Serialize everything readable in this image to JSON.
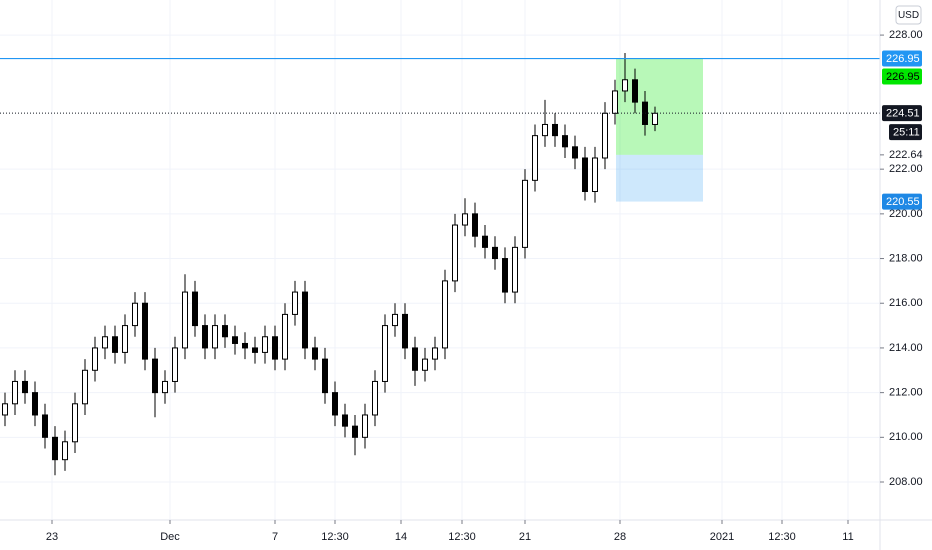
{
  "chart_data": {
    "type": "candlestick",
    "currency": "USD",
    "ylim": [
      206.3,
      229.57
    ],
    "yticks": [
      {
        "value": 228,
        "label": "228.00"
      },
      {
        "value": 222,
        "label": "222.00"
      },
      {
        "value": 220,
        "label": "220.00"
      },
      {
        "value": 218,
        "label": "218.00"
      },
      {
        "value": 216,
        "label": "216.00"
      },
      {
        "value": 214,
        "label": "214.00"
      },
      {
        "value": 212,
        "label": "212.00"
      },
      {
        "value": 210,
        "label": "210.00"
      },
      {
        "value": 208,
        "label": "208.00"
      }
    ],
    "xlim": [
      -0.5,
      87.5
    ],
    "xticks": [
      {
        "value": 4.7,
        "label": "23"
      },
      {
        "value": 16.5,
        "label": "Dec"
      },
      {
        "value": 27,
        "label": "7"
      },
      {
        "value": 33,
        "label": "12:30"
      },
      {
        "value": 39.6,
        "label": "14"
      },
      {
        "value": 45.7,
        "label": "12:30"
      },
      {
        "value": 52,
        "label": "21"
      },
      {
        "value": 61.5,
        "label": "28"
      },
      {
        "value": 71.7,
        "label": "2021"
      },
      {
        "value": 77.7,
        "label": "12:30"
      },
      {
        "value": 84.3,
        "label": "11"
      }
    ],
    "grid": true,
    "up_color": "#ffffff",
    "down_color": "#000000",
    "open": [
      211.0,
      211.5,
      212.5,
      212.0,
      211.0,
      210.0,
      209.0,
      209.8,
      211.5,
      213.0,
      214.0,
      214.5,
      213.8,
      215.0,
      216.0,
      213.5,
      212.0,
      212.5,
      214.0,
      216.5,
      215.0,
      214.0,
      215.0,
      214.5,
      214.2,
      214.0,
      213.8,
      214.5,
      213.5,
      215.5,
      216.5,
      214.0,
      213.5,
      212.0,
      211.0,
      210.5,
      210.0,
      211.0,
      212.5,
      215.0,
      215.5,
      214.0,
      213.0,
      213.5,
      214.0,
      217.0,
      219.5,
      220.0,
      219.0,
      218.5,
      218.0,
      216.5,
      218.5,
      221.5,
      223.5,
      224.0,
      223.5,
      223.0,
      222.5,
      221.0,
      222.5,
      224.5,
      225.5,
      226.0,
      225.0,
      224.0
    ],
    "high": [
      212.0,
      213.0,
      213.0,
      212.5,
      211.5,
      210.5,
      210.3,
      212.0,
      213.5,
      214.5,
      215.0,
      215.0,
      215.5,
      216.5,
      216.5,
      214.0,
      213.0,
      214.5,
      217.3,
      217.0,
      215.5,
      215.5,
      215.5,
      215.0,
      214.7,
      214.5,
      215.0,
      215.0,
      216.0,
      217.0,
      217.0,
      214.5,
      214.0,
      212.5,
      211.5,
      211.0,
      211.5,
      213.0,
      215.5,
      216.0,
      216.0,
      214.5,
      214.0,
      214.5,
      217.5,
      220.0,
      220.7,
      220.5,
      219.5,
      219.0,
      218.5,
      219.0,
      222.0,
      224.0,
      225.1,
      224.5,
      224.0,
      223.5,
      223.0,
      223.0,
      225.0,
      226.0,
      227.2,
      226.5,
      225.5,
      224.8
    ],
    "low": [
      210.5,
      211.0,
      211.5,
      210.5,
      209.5,
      208.3,
      208.5,
      209.3,
      211.0,
      212.5,
      213.5,
      213.3,
      213.3,
      214.5,
      213.0,
      210.9,
      211.5,
      212.0,
      213.5,
      214.5,
      213.5,
      213.5,
      214.0,
      213.7,
      213.5,
      213.3,
      213.3,
      213.0,
      213.0,
      215.0,
      213.5,
      213.0,
      211.5,
      210.5,
      210.0,
      209.2,
      209.5,
      210.5,
      212.0,
      214.5,
      213.5,
      212.3,
      212.5,
      213.0,
      213.5,
      216.5,
      219.0,
      218.5,
      218.0,
      217.5,
      216.0,
      216.0,
      218.0,
      221.0,
      223.0,
      223.0,
      222.5,
      222.0,
      220.6,
      220.5,
      222.0,
      224.0,
      225.0,
      224.5,
      223.5,
      223.7
    ],
    "close": [
      211.5,
      212.5,
      212.0,
      211.0,
      210.0,
      209.0,
      209.8,
      211.5,
      213.0,
      214.0,
      214.5,
      213.8,
      215.0,
      216.0,
      213.5,
      212.0,
      212.5,
      214.0,
      216.5,
      215.0,
      214.0,
      215.0,
      214.5,
      214.2,
      214.0,
      213.8,
      214.5,
      213.5,
      215.5,
      216.5,
      214.0,
      213.5,
      212.0,
      211.0,
      210.5,
      210.0,
      211.0,
      212.5,
      215.0,
      215.5,
      214.0,
      213.0,
      213.5,
      214.0,
      217.0,
      219.5,
      220.0,
      219.0,
      218.5,
      218.0,
      216.5,
      218.5,
      221.5,
      223.5,
      224.0,
      223.5,
      223.0,
      222.5,
      221.0,
      222.5,
      224.5,
      225.5,
      226.0,
      225.0,
      224.0,
      224.5
    ],
    "horizontal_line": {
      "value": 226.95,
      "color": "#2196f3"
    },
    "last_price": 224.51,
    "countdown": "25:11",
    "position": {
      "x_start": 61.1,
      "x_end": 69.8,
      "entry": 222.64,
      "target": 226.95,
      "stop": 220.55,
      "target_color": "rgba(0,230,0,0.28)",
      "stop_color": "rgba(33,150,243,0.22)"
    }
  }
}
